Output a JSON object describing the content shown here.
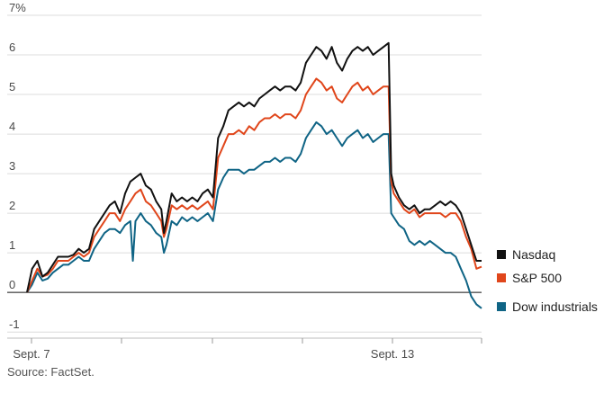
{
  "chart_data": {
    "type": "line",
    "ylabel": "",
    "xlabel": "",
    "ylim": [
      -1.2,
      7
    ],
    "y_ticks": [
      -1,
      0,
      1,
      2,
      3,
      4,
      5,
      6,
      7
    ],
    "y_tick_labels": [
      "-1",
      "0",
      "1",
      "2",
      "3",
      "4",
      "5",
      "6",
      "7%"
    ],
    "x_tick_labels": [
      "Sept. 7",
      "",
      "",
      "",
      "Sept. 13",
      ""
    ],
    "grid": "horizontal",
    "legend_position": "right",
    "source": "Source: FactSet.",
    "series": [
      {
        "name": "Nasdaq",
        "color": "#111111",
        "points": [
          [
            0,
            0
          ],
          [
            0.1,
            0.6
          ],
          [
            0.2,
            0.8
          ],
          [
            0.3,
            0.4
          ],
          [
            0.4,
            0.5
          ],
          [
            0.5,
            0.7
          ],
          [
            0.6,
            0.9
          ],
          [
            0.7,
            0.9
          ],
          [
            0.8,
            0.9
          ],
          [
            0.9,
            0.95
          ],
          [
            1.0,
            1.1
          ],
          [
            1.1,
            1.0
          ],
          [
            1.2,
            1.1
          ],
          [
            1.3,
            1.6
          ],
          [
            1.4,
            1.8
          ],
          [
            1.5,
            2.0
          ],
          [
            1.6,
            2.2
          ],
          [
            1.7,
            2.3
          ],
          [
            1.8,
            2.0
          ],
          [
            1.9,
            2.5
          ],
          [
            2.0,
            2.8
          ],
          [
            2.1,
            2.9
          ],
          [
            2.2,
            3.0
          ],
          [
            2.3,
            2.7
          ],
          [
            2.4,
            2.6
          ],
          [
            2.5,
            2.3
          ],
          [
            2.6,
            2.1
          ],
          [
            2.65,
            1.5
          ],
          [
            2.7,
            1.8
          ],
          [
            2.8,
            2.5
          ],
          [
            2.9,
            2.3
          ],
          [
            3.0,
            2.4
          ],
          [
            3.1,
            2.3
          ],
          [
            3.2,
            2.4
          ],
          [
            3.3,
            2.3
          ],
          [
            3.4,
            2.5
          ],
          [
            3.5,
            2.6
          ],
          [
            3.6,
            2.4
          ],
          [
            3.7,
            3.9
          ],
          [
            3.8,
            4.2
          ],
          [
            3.9,
            4.6
          ],
          [
            4.0,
            4.7
          ],
          [
            4.1,
            4.8
          ],
          [
            4.2,
            4.7
          ],
          [
            4.3,
            4.8
          ],
          [
            4.4,
            4.7
          ],
          [
            4.5,
            4.9
          ],
          [
            4.6,
            5.0
          ],
          [
            4.7,
            5.1
          ],
          [
            4.8,
            5.2
          ],
          [
            4.9,
            5.1
          ],
          [
            5.0,
            5.2
          ],
          [
            5.1,
            5.2
          ],
          [
            5.2,
            5.1
          ],
          [
            5.3,
            5.3
          ],
          [
            5.4,
            5.8
          ],
          [
            5.5,
            6.0
          ],
          [
            5.6,
            6.2
          ],
          [
            5.7,
            6.1
          ],
          [
            5.8,
            5.9
          ],
          [
            5.9,
            6.2
          ],
          [
            6.0,
            5.8
          ],
          [
            6.1,
            5.6
          ],
          [
            6.2,
            5.9
          ],
          [
            6.3,
            6.1
          ],
          [
            6.4,
            6.2
          ],
          [
            6.5,
            6.1
          ],
          [
            6.6,
            6.2
          ],
          [
            6.7,
            6.0
          ],
          [
            6.8,
            6.1
          ],
          [
            6.9,
            6.2
          ],
          [
            7.0,
            6.3
          ],
          [
            7.05,
            3.0
          ],
          [
            7.1,
            2.7
          ],
          [
            7.2,
            2.4
          ],
          [
            7.3,
            2.2
          ],
          [
            7.4,
            2.1
          ],
          [
            7.5,
            2.2
          ],
          [
            7.6,
            2.0
          ],
          [
            7.7,
            2.1
          ],
          [
            7.8,
            2.1
          ],
          [
            7.9,
            2.2
          ],
          [
            8.0,
            2.3
          ],
          [
            8.1,
            2.2
          ],
          [
            8.2,
            2.3
          ],
          [
            8.3,
            2.2
          ],
          [
            8.4,
            2.0
          ],
          [
            8.5,
            1.6
          ],
          [
            8.6,
            1.2
          ],
          [
            8.7,
            0.8
          ],
          [
            8.8,
            0.8
          ]
        ]
      },
      {
        "name": "S&P 500",
        "color": "#e0461b",
        "points": [
          [
            0,
            0
          ],
          [
            0.1,
            0.3
          ],
          [
            0.2,
            0.6
          ],
          [
            0.3,
            0.4
          ],
          [
            0.4,
            0.45
          ],
          [
            0.5,
            0.6
          ],
          [
            0.6,
            0.8
          ],
          [
            0.7,
            0.8
          ],
          [
            0.8,
            0.8
          ],
          [
            0.9,
            0.9
          ],
          [
            1.0,
            1.0
          ],
          [
            1.1,
            0.9
          ],
          [
            1.2,
            1.0
          ],
          [
            1.3,
            1.4
          ],
          [
            1.4,
            1.6
          ],
          [
            1.5,
            1.8
          ],
          [
            1.6,
            2.0
          ],
          [
            1.7,
            2.0
          ],
          [
            1.8,
            1.8
          ],
          [
            1.9,
            2.1
          ],
          [
            2.0,
            2.3
          ],
          [
            2.1,
            2.5
          ],
          [
            2.2,
            2.6
          ],
          [
            2.3,
            2.3
          ],
          [
            2.4,
            2.2
          ],
          [
            2.5,
            2.0
          ],
          [
            2.6,
            1.8
          ],
          [
            2.65,
            1.4
          ],
          [
            2.7,
            1.6
          ],
          [
            2.8,
            2.2
          ],
          [
            2.9,
            2.1
          ],
          [
            3.0,
            2.2
          ],
          [
            3.1,
            2.1
          ],
          [
            3.2,
            2.2
          ],
          [
            3.3,
            2.1
          ],
          [
            3.4,
            2.2
          ],
          [
            3.5,
            2.3
          ],
          [
            3.6,
            2.1
          ],
          [
            3.7,
            3.4
          ],
          [
            3.8,
            3.7
          ],
          [
            3.9,
            4.0
          ],
          [
            4.0,
            4.0
          ],
          [
            4.1,
            4.1
          ],
          [
            4.2,
            4.0
          ],
          [
            4.3,
            4.2
          ],
          [
            4.4,
            4.1
          ],
          [
            4.5,
            4.3
          ],
          [
            4.6,
            4.4
          ],
          [
            4.7,
            4.4
          ],
          [
            4.8,
            4.5
          ],
          [
            4.9,
            4.4
          ],
          [
            5.0,
            4.5
          ],
          [
            5.1,
            4.5
          ],
          [
            5.2,
            4.4
          ],
          [
            5.3,
            4.6
          ],
          [
            5.4,
            5.0
          ],
          [
            5.5,
            5.2
          ],
          [
            5.6,
            5.4
          ],
          [
            5.7,
            5.3
          ],
          [
            5.8,
            5.1
          ],
          [
            5.9,
            5.2
          ],
          [
            6.0,
            4.9
          ],
          [
            6.1,
            4.8
          ],
          [
            6.2,
            5.0
          ],
          [
            6.3,
            5.2
          ],
          [
            6.4,
            5.3
          ],
          [
            6.5,
            5.1
          ],
          [
            6.6,
            5.2
          ],
          [
            6.7,
            5.0
          ],
          [
            6.8,
            5.1
          ],
          [
            6.9,
            5.2
          ],
          [
            7.0,
            5.2
          ],
          [
            7.05,
            2.8
          ],
          [
            7.1,
            2.5
          ],
          [
            7.2,
            2.3
          ],
          [
            7.3,
            2.1
          ],
          [
            7.4,
            2.0
          ],
          [
            7.5,
            2.1
          ],
          [
            7.6,
            1.9
          ],
          [
            7.7,
            2.0
          ],
          [
            7.8,
            2.0
          ],
          [
            7.9,
            2.0
          ],
          [
            8.0,
            2.0
          ],
          [
            8.1,
            1.9
          ],
          [
            8.2,
            2.0
          ],
          [
            8.3,
            2.0
          ],
          [
            8.4,
            1.8
          ],
          [
            8.5,
            1.4
          ],
          [
            8.6,
            1.1
          ],
          [
            8.7,
            0.6
          ],
          [
            8.8,
            0.65
          ]
        ]
      },
      {
        "name": "Dow industrials",
        "color": "#0f6485",
        "points": [
          [
            0,
            0
          ],
          [
            0.1,
            0.2
          ],
          [
            0.2,
            0.5
          ],
          [
            0.3,
            0.3
          ],
          [
            0.4,
            0.35
          ],
          [
            0.5,
            0.5
          ],
          [
            0.6,
            0.6
          ],
          [
            0.7,
            0.7
          ],
          [
            0.8,
            0.7
          ],
          [
            0.9,
            0.8
          ],
          [
            1.0,
            0.9
          ],
          [
            1.1,
            0.8
          ],
          [
            1.2,
            0.8
          ],
          [
            1.3,
            1.1
          ],
          [
            1.4,
            1.3
          ],
          [
            1.5,
            1.5
          ],
          [
            1.6,
            1.6
          ],
          [
            1.7,
            1.6
          ],
          [
            1.8,
            1.5
          ],
          [
            1.9,
            1.7
          ],
          [
            2.0,
            1.8
          ],
          [
            2.05,
            0.8
          ],
          [
            2.1,
            1.8
          ],
          [
            2.2,
            2.0
          ],
          [
            2.3,
            1.8
          ],
          [
            2.4,
            1.7
          ],
          [
            2.5,
            1.5
          ],
          [
            2.6,
            1.4
          ],
          [
            2.65,
            1.0
          ],
          [
            2.7,
            1.2
          ],
          [
            2.8,
            1.8
          ],
          [
            2.9,
            1.7
          ],
          [
            3.0,
            1.9
          ],
          [
            3.1,
            1.8
          ],
          [
            3.2,
            1.9
          ],
          [
            3.3,
            1.8
          ],
          [
            3.4,
            1.9
          ],
          [
            3.5,
            2.0
          ],
          [
            3.6,
            1.8
          ],
          [
            3.7,
            2.6
          ],
          [
            3.8,
            2.9
          ],
          [
            3.9,
            3.1
          ],
          [
            4.0,
            3.1
          ],
          [
            4.1,
            3.1
          ],
          [
            4.2,
            3.0
          ],
          [
            4.3,
            3.1
          ],
          [
            4.4,
            3.1
          ],
          [
            4.5,
            3.2
          ],
          [
            4.6,
            3.3
          ],
          [
            4.7,
            3.3
          ],
          [
            4.8,
            3.4
          ],
          [
            4.9,
            3.3
          ],
          [
            5.0,
            3.4
          ],
          [
            5.1,
            3.4
          ],
          [
            5.2,
            3.3
          ],
          [
            5.3,
            3.5
          ],
          [
            5.4,
            3.9
          ],
          [
            5.5,
            4.1
          ],
          [
            5.6,
            4.3
          ],
          [
            5.7,
            4.2
          ],
          [
            5.8,
            4.0
          ],
          [
            5.9,
            4.1
          ],
          [
            6.0,
            3.9
          ],
          [
            6.1,
            3.7
          ],
          [
            6.2,
            3.9
          ],
          [
            6.3,
            4.0
          ],
          [
            6.4,
            4.1
          ],
          [
            6.5,
            3.9
          ],
          [
            6.6,
            4.0
          ],
          [
            6.7,
            3.8
          ],
          [
            6.8,
            3.9
          ],
          [
            6.9,
            4.0
          ],
          [
            7.0,
            4.0
          ],
          [
            7.05,
            2.0
          ],
          [
            7.1,
            1.9
          ],
          [
            7.2,
            1.7
          ],
          [
            7.3,
            1.6
          ],
          [
            7.4,
            1.3
          ],
          [
            7.5,
            1.2
          ],
          [
            7.6,
            1.3
          ],
          [
            7.7,
            1.2
          ],
          [
            7.8,
            1.3
          ],
          [
            7.9,
            1.2
          ],
          [
            8.0,
            1.1
          ],
          [
            8.1,
            1.0
          ],
          [
            8.2,
            1.0
          ],
          [
            8.3,
            0.9
          ],
          [
            8.4,
            0.6
          ],
          [
            8.5,
            0.3
          ],
          [
            8.6,
            -0.1
          ],
          [
            8.7,
            -0.3
          ],
          [
            8.8,
            -0.4
          ]
        ]
      }
    ],
    "x_range": [
      0,
      8.8
    ]
  }
}
